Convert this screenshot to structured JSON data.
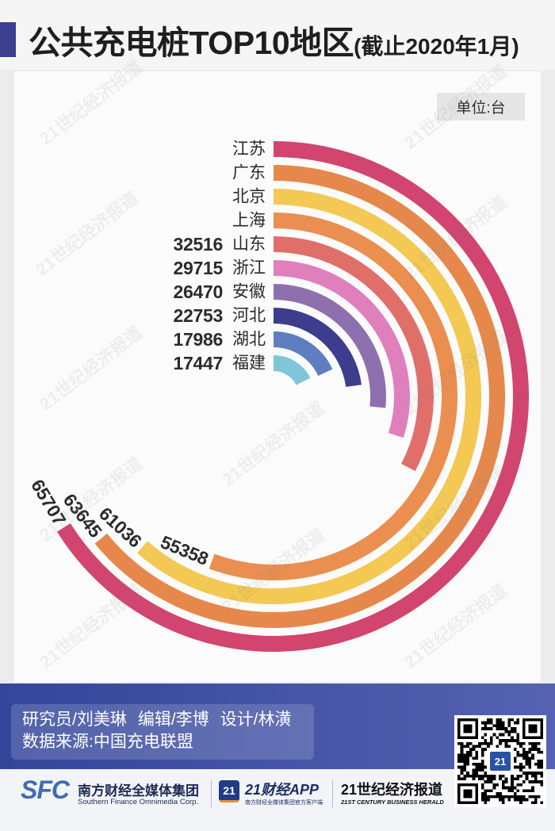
{
  "title": {
    "main": "公共充电桩TOP10地区",
    "sub": "(截止2020年1月)"
  },
  "unit_label": "单位:台",
  "watermark": "21世纪经济报道",
  "chart_data": {
    "type": "bar",
    "categories": [
      "江苏",
      "广东",
      "北京",
      "上海",
      "山东",
      "浙江",
      "安徽",
      "河北",
      "湖北",
      "福建"
    ],
    "values": [
      65707,
      63645,
      61036,
      55358,
      32516,
      29715,
      26470,
      22753,
      17986,
      17447
    ],
    "colors": [
      "#d1456e",
      "#e6884c",
      "#f3c853",
      "#ea8f4f",
      "#e06f6a",
      "#df80bd",
      "#8e70ae",
      "#3e3c8d",
      "#5e7ec0",
      "#7ec6d8"
    ]
  },
  "credits": {
    "researcher": "研究员/刘美琳",
    "editor": "编辑/李博",
    "designer": "设计/林潢",
    "source": "数据来源:中国充电联盟"
  },
  "logos": {
    "sfc_mark": "SFC",
    "sfc_name": "南方财经全媒体集团",
    "sfc_en": "Southern Finance Omnimedia Corp.",
    "app_badge": "21",
    "app_name": "21财经APP",
    "app_sub": "南方财经全媒体集团官方客户端",
    "paper_name": "21世纪经济报道",
    "paper_en": "21ST CENTURY BUSINESS HERALD"
  },
  "qr": {
    "badge": "21"
  }
}
